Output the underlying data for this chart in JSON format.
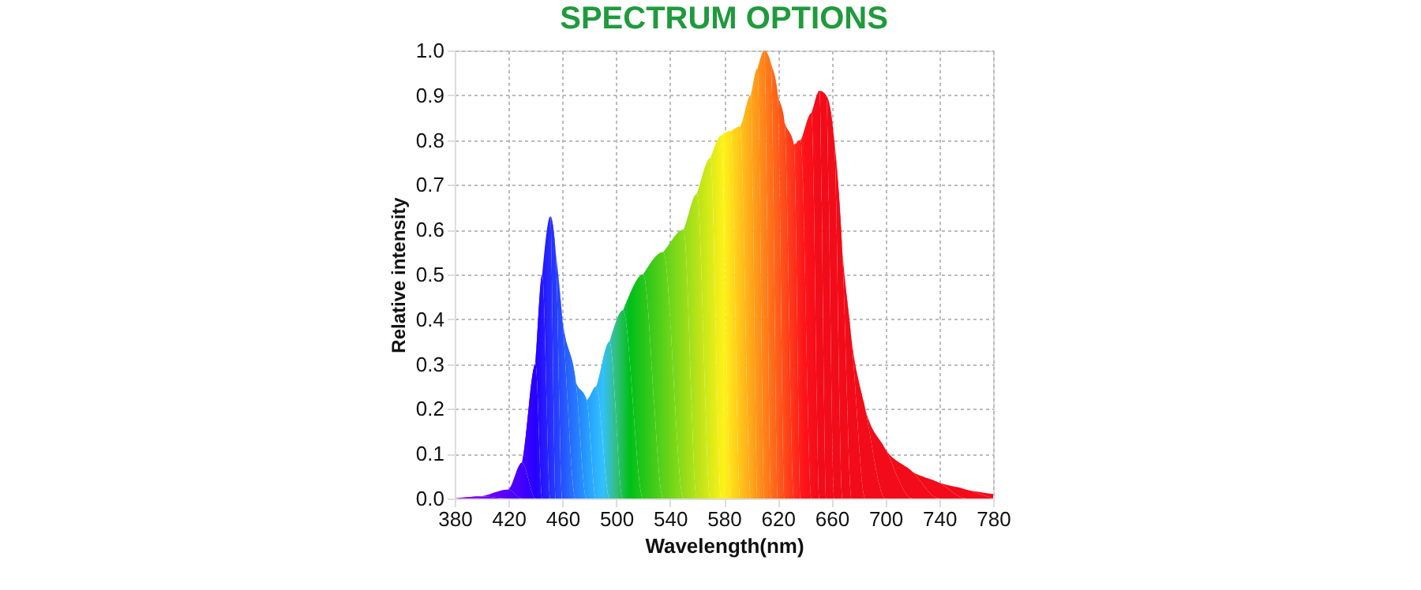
{
  "chart_data": {
    "type": "area",
    "title": "SPECTRUM OPTIONS",
    "xlabel": "Wavelength(nm)",
    "ylabel": "Relative intensity",
    "x": [
      380,
      400,
      420,
      430,
      440,
      445,
      451,
      455,
      460,
      470,
      478,
      485,
      495,
      505,
      520,
      535,
      550,
      560,
      570,
      578,
      585,
      592,
      600,
      605,
      610,
      615,
      620,
      625,
      632,
      637,
      645,
      651,
      656,
      662,
      668,
      675,
      685,
      700,
      720,
      740,
      760,
      780
    ],
    "values": [
      0.0,
      0.005,
      0.02,
      0.08,
      0.3,
      0.5,
      0.63,
      0.55,
      0.4,
      0.26,
      0.22,
      0.25,
      0.35,
      0.42,
      0.5,
      0.55,
      0.6,
      0.68,
      0.76,
      0.81,
      0.82,
      0.83,
      0.9,
      0.96,
      1.0,
      0.97,
      0.9,
      0.84,
      0.79,
      0.8,
      0.86,
      0.91,
      0.9,
      0.8,
      0.55,
      0.35,
      0.2,
      0.11,
      0.06,
      0.035,
      0.02,
      0.01
    ],
    "xlim": [
      380,
      780
    ],
    "xticks": [
      380,
      420,
      460,
      500,
      540,
      580,
      620,
      660,
      700,
      740,
      780
    ],
    "ylim": [
      0,
      1
    ],
    "yticks": [
      {
        "value": 0,
        "label": "0.0"
      },
      0.1,
      0.2,
      0.3,
      0.4,
      0.5,
      0.6,
      0.7,
      0.8,
      0.9,
      {
        "value": 1,
        "label": "1.0"
      }
    ],
    "grid": true
  }
}
